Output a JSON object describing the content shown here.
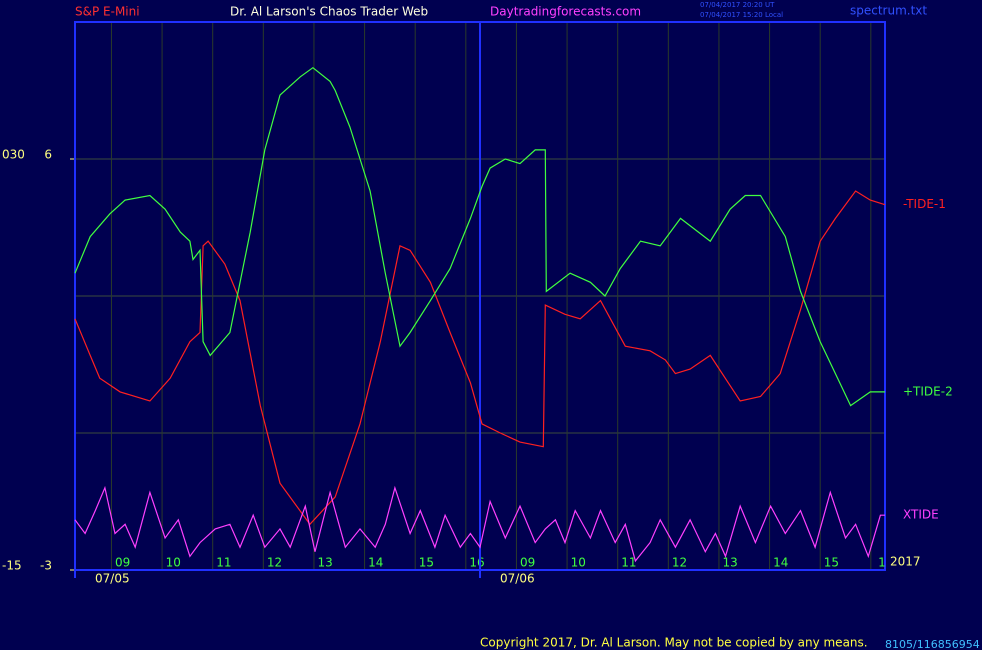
{
  "chart_data": {
    "type": "line",
    "symbol": "S&P E-Mini",
    "title": "Dr. Al Larson's Chaos Trader Web",
    "website": "Daytradingforecasts.com",
    "timestamps": [
      "07/04/2017 20:20 UT",
      "07/04/2017 15:20 Local"
    ],
    "file": "spectrum.txt",
    "year": "2017",
    "copyright": "Copyright 2017, Dr. Al Larson. May not be copied by any means.",
    "counter": "8105/116856954",
    "xlim": [
      0,
      16
    ],
    "xticks": [
      {
        "value": 1,
        "label": "09"
      },
      {
        "value": 2,
        "label": "10"
      },
      {
        "value": 3,
        "label": "11"
      },
      {
        "value": 4,
        "label": "12"
      },
      {
        "value": 5,
        "label": "13"
      },
      {
        "value": 6,
        "label": "14"
      },
      {
        "value": 7,
        "label": "15"
      },
      {
        "value": 8,
        "label": "16"
      },
      {
        "value": 9,
        "label": "09"
      },
      {
        "value": 10,
        "label": "10"
      },
      {
        "value": 11,
        "label": "11"
      },
      {
        "value": 12,
        "label": "12"
      },
      {
        "value": 13,
        "label": "13"
      },
      {
        "value": 14,
        "label": "14"
      },
      {
        "value": 15,
        "label": "15"
      },
      {
        "value": 16,
        "label": "1"
      }
    ],
    "day_labels": [
      {
        "value": 0,
        "label": "07/05"
      },
      {
        "value": 8,
        "label": "07/06"
      }
    ],
    "ylim": [
      -3,
      9
    ],
    "yticks": [
      -3,
      6
    ],
    "ygrid": [
      0,
      3,
      6
    ],
    "y2lim": [
      -15,
      45
    ],
    "y2ticks": [
      {
        "value": -15,
        "label": "-15"
      },
      {
        "value": 30,
        "label": "030"
      }
    ],
    "grid": true,
    "series": [
      {
        "name": "-TIDE-1",
        "color": "#ff2020",
        "x": [
          0,
          0.3,
          0.49,
          0.89,
          1.48,
          1.88,
          2.27,
          2.47,
          2.53,
          2.63,
          2.96,
          3.26,
          3.66,
          4.05,
          4.64,
          5.14,
          5.63,
          6.03,
          6.42,
          6.62,
          7.02,
          7.41,
          7.81,
          8.04,
          8.4,
          8.79,
          9.25,
          9.29,
          9.68,
          9.98,
          10.38,
          10.87,
          11.36,
          11.66,
          11.86,
          12.15,
          12.55,
          13.14,
          13.54,
          13.93,
          14.33,
          14.72,
          15.02,
          15.42,
          15.71,
          16
        ],
        "values": [
          2.5,
          1.7,
          1.2,
          0.9,
          0.7,
          1.2,
          2.0,
          2.2,
          4.1,
          4.2,
          3.7,
          2.9,
          0.6,
          -1.1,
          -2.0,
          -1.4,
          0.2,
          2.0,
          4.1,
          4.0,
          3.3,
          2.2,
          1.1,
          0.2,
          0.0,
          -0.2,
          -0.3,
          2.8,
          2.6,
          2.5,
          2.9,
          1.9,
          1.8,
          1.6,
          1.3,
          1.4,
          1.7,
          0.7,
          0.8,
          1.3,
          2.7,
          4.2,
          4.7,
          5.3,
          5.1,
          5.0
        ]
      },
      {
        "name": "+TIDE-2",
        "color": "#40ff40",
        "x": [
          0,
          0.3,
          0.69,
          0.99,
          1.48,
          1.78,
          2.08,
          2.27,
          2.33,
          2.47,
          2.53,
          2.67,
          3.06,
          3.46,
          3.75,
          4.05,
          4.45,
          4.7,
          5.04,
          5.14,
          5.43,
          5.83,
          6.13,
          6.42,
          6.62,
          7.02,
          7.41,
          7.81,
          8.04,
          8.2,
          8.5,
          8.79,
          9.09,
          9.29,
          9.31,
          9.78,
          10.18,
          10.47,
          10.77,
          11.17,
          11.56,
          11.96,
          12.55,
          12.94,
          13.24,
          13.54,
          14.03,
          14.33,
          14.72,
          15.02,
          15.32,
          15.71,
          16
        ],
        "values": [
          3.5,
          4.3,
          4.8,
          5.1,
          5.2,
          4.9,
          4.4,
          4.2,
          3.8,
          4.0,
          2.0,
          1.7,
          2.2,
          4.4,
          6.2,
          7.4,
          7.8,
          8.0,
          7.7,
          7.5,
          6.7,
          5.3,
          3.5,
          1.9,
          2.2,
          2.9,
          3.6,
          4.7,
          5.4,
          5.8,
          6.0,
          5.9,
          6.2,
          6.2,
          3.1,
          3.5,
          3.3,
          3.0,
          3.6,
          4.2,
          4.1,
          4.7,
          4.2,
          4.9,
          5.2,
          5.2,
          4.3,
          3.1,
          2.0,
          1.3,
          0.6,
          0.9,
          0.9
        ]
      },
      {
        "name": "XTIDE",
        "color": "#ff40ff",
        "x": [
          0,
          0.2,
          0.4,
          0.59,
          0.79,
          0.99,
          1.19,
          1.48,
          1.78,
          2.04,
          2.27,
          2.47,
          2.77,
          3.06,
          3.26,
          3.52,
          3.75,
          4.05,
          4.25,
          4.55,
          4.74,
          5.04,
          5.34,
          5.63,
          5.93,
          6.13,
          6.32,
          6.62,
          6.82,
          7.11,
          7.31,
          7.61,
          7.81,
          8.0,
          8.2,
          8.5,
          8.79,
          9.09,
          9.29,
          9.49,
          9.68,
          9.88,
          10.18,
          10.38,
          10.67,
          10.87,
          11.07,
          11.36,
          11.56,
          11.86,
          12.15,
          12.45,
          12.65,
          12.85,
          13.14,
          13.44,
          13.74,
          14.03,
          14.33,
          14.62,
          14.92,
          15.22,
          15.42,
          15.67,
          15.91,
          16
        ],
        "values": [
          -1.9,
          -2.2,
          -1.7,
          -1.2,
          -2.2,
          -2.0,
          -2.5,
          -1.3,
          -2.3,
          -1.9,
          -2.7,
          -2.4,
          -2.1,
          -2.0,
          -2.5,
          -1.8,
          -2.5,
          -2.1,
          -2.5,
          -1.6,
          -2.6,
          -1.3,
          -2.5,
          -2.1,
          -2.5,
          -2.0,
          -1.2,
          -2.2,
          -1.7,
          -2.5,
          -1.8,
          -2.5,
          -2.2,
          -2.5,
          -1.5,
          -2.3,
          -1.6,
          -2.4,
          -2.1,
          -1.9,
          -2.4,
          -1.7,
          -2.3,
          -1.7,
          -2.4,
          -2.0,
          -2.8,
          -2.4,
          -1.9,
          -2.5,
          -1.9,
          -2.6,
          -2.2,
          -2.7,
          -1.6,
          -2.4,
          -1.6,
          -2.2,
          -1.7,
          -2.5,
          -1.3,
          -2.3,
          -2.0,
          -2.7,
          -1.8,
          -1.8
        ]
      }
    ]
  }
}
